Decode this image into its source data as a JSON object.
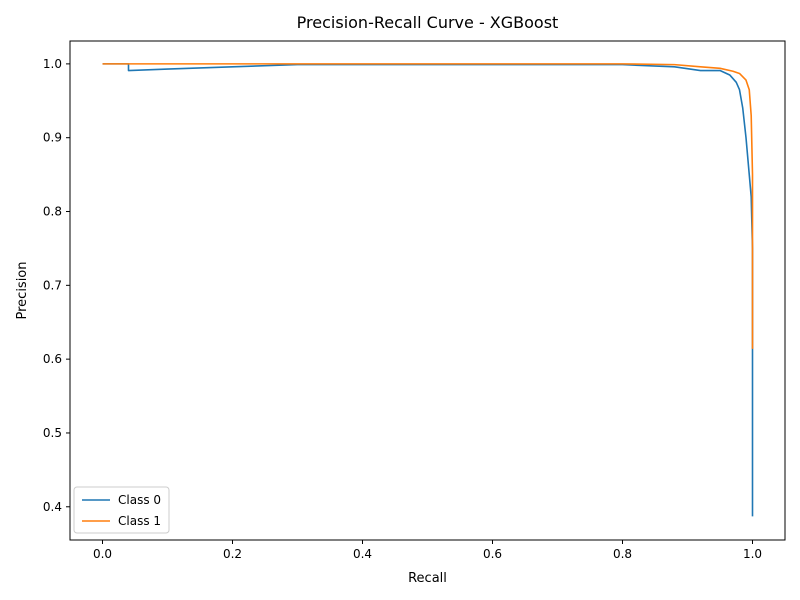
{
  "chart_data": {
    "type": "line",
    "title": "Precision-Recall Curve - XGBoost",
    "xlabel": "Recall",
    "ylabel": "Precision",
    "xlim": [
      -0.05,
      1.05
    ],
    "ylim": [
      0.355,
      1.031
    ],
    "xticks": [
      0.0,
      0.2,
      0.4,
      0.6,
      0.8,
      1.0
    ],
    "xtick_labels": [
      "0.0",
      "0.2",
      "0.4",
      "0.6",
      "0.8",
      "1.0"
    ],
    "yticks": [
      0.4,
      0.5,
      0.6,
      0.7,
      0.8,
      0.9,
      1.0
    ],
    "ytick_labels": [
      "0.4",
      "0.5",
      "0.6",
      "0.7",
      "0.8",
      "0.9",
      "1.0"
    ],
    "grid": false,
    "legend": {
      "position": "lower-left"
    },
    "series": [
      {
        "name": "Class 0",
        "color": "#1f77b4",
        "x": [
          0.0,
          0.04,
          0.04,
          0.1,
          0.2,
          0.3,
          0.5,
          0.7,
          0.8,
          0.88,
          0.92,
          0.95,
          0.965,
          0.975,
          0.98,
          0.985,
          0.99,
          0.995,
          0.998,
          1.0,
          1.0,
          1.0
        ],
        "y": [
          1.0,
          1.0,
          0.991,
          0.993,
          0.996,
          0.999,
          0.999,
          0.999,
          0.999,
          0.996,
          0.991,
          0.991,
          0.985,
          0.975,
          0.965,
          0.94,
          0.9,
          0.85,
          0.82,
          0.75,
          0.6,
          0.387
        ]
      },
      {
        "name": "Class 1",
        "color": "#ff7f0e",
        "x": [
          0.0,
          0.2,
          0.4,
          0.6,
          0.8,
          0.88,
          0.92,
          0.95,
          0.97,
          0.98,
          0.99,
          0.995,
          0.998,
          1.0,
          1.0,
          1.0
        ],
        "y": [
          1.0,
          1.0,
          1.0,
          1.0,
          1.0,
          0.999,
          0.996,
          0.994,
          0.99,
          0.987,
          0.978,
          0.965,
          0.93,
          0.85,
          0.7,
          0.614
        ]
      }
    ]
  }
}
